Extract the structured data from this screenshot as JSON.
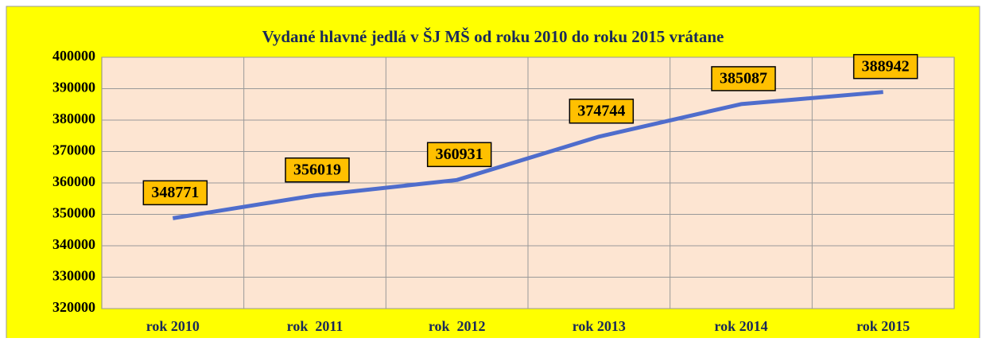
{
  "chart_data": {
    "type": "line",
    "title": "Vydané hlavné jedlá v ŠJ MŠ od roku 2010 do roku 2015 vrátane",
    "categories": [
      "rok 2010",
      "rok  2011",
      "rok  2012",
      "rok 2013",
      "rok 2014",
      "rok 2015"
    ],
    "values": [
      348771,
      356019,
      360931,
      374744,
      385087,
      388942
    ],
    "color": "#4f6dcc",
    "ylim": [
      320000,
      400000
    ],
    "yticks": [
      320000,
      330000,
      340000,
      350000,
      360000,
      370000,
      380000,
      390000,
      400000
    ],
    "grid": true
  }
}
